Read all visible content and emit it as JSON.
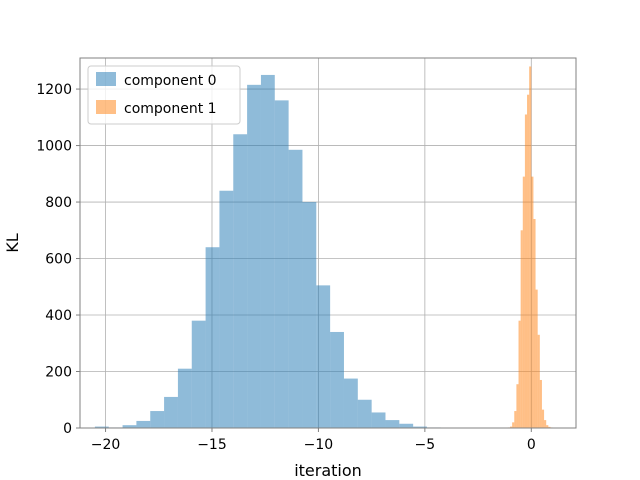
{
  "chart_data": {
    "type": "bar",
    "xlabel": "iteration",
    "ylabel": "KL",
    "xlim": [
      -21.2,
      2.1
    ],
    "ylim": [
      0,
      1310
    ],
    "xticks": [
      -20,
      -15,
      -10,
      -5,
      0
    ],
    "xtick_labels": [
      "−20",
      "−15",
      "−10",
      "−5",
      "0"
    ],
    "yticks": [
      0,
      200,
      400,
      600,
      800,
      1000,
      1200
    ],
    "ytick_labels": [
      "0",
      "200",
      "400",
      "600",
      "800",
      "1000",
      "1200"
    ],
    "grid": true,
    "legend_position": "top-left",
    "series": [
      {
        "name": "component 0",
        "color": "#1f77b4",
        "opacity": 0.5,
        "bin_edges": [
          -20.5,
          -19.85,
          -19.2,
          -18.55,
          -17.9,
          -17.25,
          -16.6,
          -15.95,
          -15.3,
          -14.65,
          -14.0,
          -13.35,
          -12.7,
          -12.05,
          -11.4,
          -10.75,
          -10.1,
          -9.45,
          -8.8,
          -8.15,
          -7.5,
          -6.85,
          -6.2,
          -5.55,
          -4.9,
          -4.25,
          -3.6
        ],
        "counts": [
          5,
          2,
          10,
          25,
          60,
          110,
          210,
          380,
          640,
          840,
          1040,
          1215,
          1250,
          1160,
          985,
          800,
          505,
          340,
          175,
          100,
          55,
          28,
          15,
          5,
          2,
          1
        ]
      },
      {
        "name": "component 1",
        "color": "#ff7f0e",
        "opacity": 0.5,
        "bin_edges": [
          -1.1,
          -1.0,
          -0.9,
          -0.8,
          -0.7,
          -0.6,
          -0.5,
          -0.4,
          -0.3,
          -0.2,
          -0.1,
          0.0,
          0.1,
          0.2,
          0.3,
          0.4,
          0.5,
          0.6,
          0.7,
          0.8,
          0.9,
          1.0,
          1.1
        ],
        "counts": [
          2,
          5,
          20,
          60,
          155,
          380,
          700,
          890,
          1110,
          1180,
          1280,
          890,
          740,
          490,
          330,
          170,
          65,
          28,
          10,
          4,
          2,
          1
        ]
      }
    ]
  }
}
